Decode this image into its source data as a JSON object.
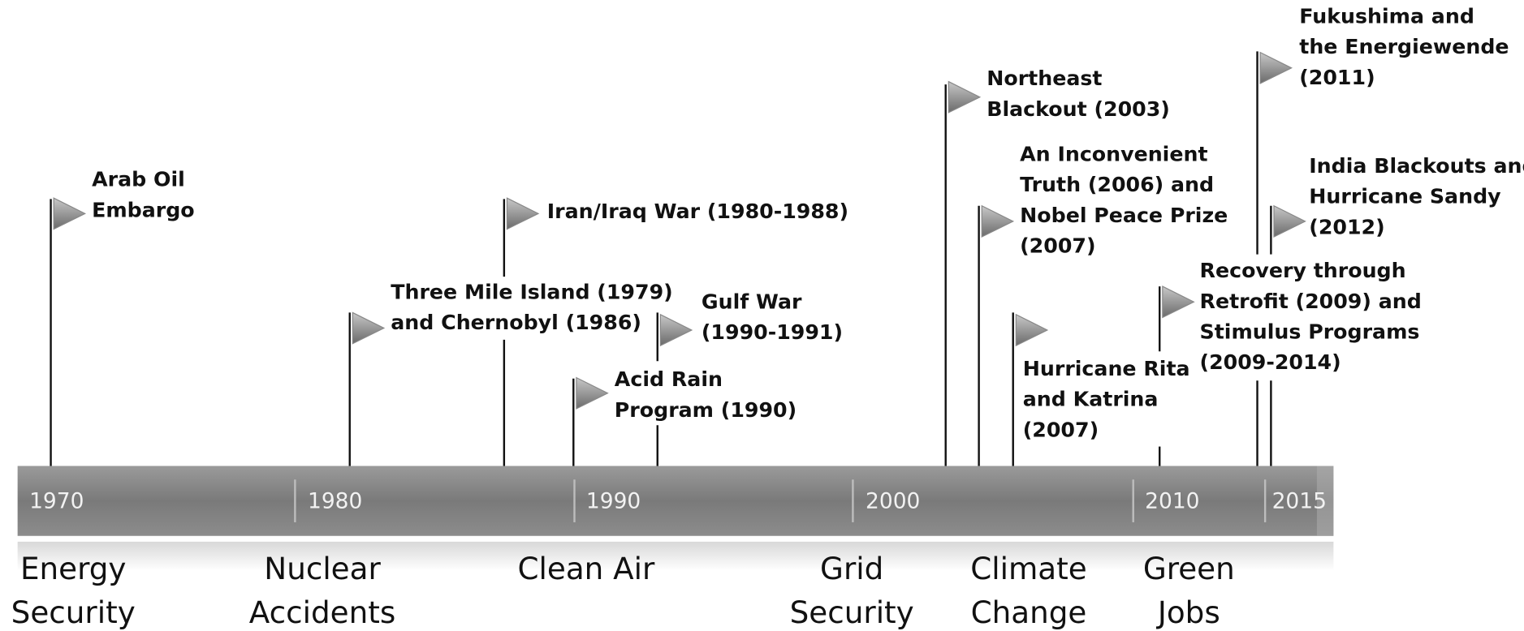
{
  "decades": [
    "1970",
    "1980",
    "1990",
    "2000",
    "2010",
    "2015"
  ],
  "events": [
    {
      "lines": [
        "Arab Oil",
        "Embargo"
      ]
    },
    {
      "lines": [
        "Three Mile Island (1979)",
        "and Chernobyl (1986)"
      ]
    },
    {
      "lines": [
        "Iran/Iraq War (1980-1988)"
      ]
    },
    {
      "lines": [
        "Acid Rain",
        "Program (1990)"
      ]
    },
    {
      "lines": [
        "Gulf War",
        "(1990-1991)"
      ]
    },
    {
      "lines": [
        "Northeast",
        "Blackout (2003)"
      ]
    },
    {
      "lines": [
        "An Inconvenient",
        "Truth (2006) and",
        "Nobel Peace Prize",
        "(2007)"
      ]
    },
    {
      "lines": [
        "Hurricane Rita",
        "and Katrina",
        "(2007)"
      ]
    },
    {
      "lines": [
        "Recovery through",
        "Retrofit (2009) and",
        "Stimulus Programs",
        "(2009-2014)"
      ]
    },
    {
      "lines": [
        "Fukushima and",
        "the Energiewende",
        "(2011)"
      ]
    },
    {
      "lines": [
        "India Blackouts and",
        "Hurricane Sandy",
        "(2012)"
      ]
    }
  ],
  "themes": [
    {
      "lines": [
        "Energy",
        "Security"
      ]
    },
    {
      "lines": [
        "Nuclear",
        "Accidents"
      ]
    },
    {
      "lines": [
        "Clean Air"
      ]
    },
    {
      "lines": [
        "Grid",
        "Security"
      ]
    },
    {
      "lines": [
        "Climate",
        "Change"
      ]
    },
    {
      "lines": [
        "Green",
        "Jobs"
      ]
    }
  ]
}
